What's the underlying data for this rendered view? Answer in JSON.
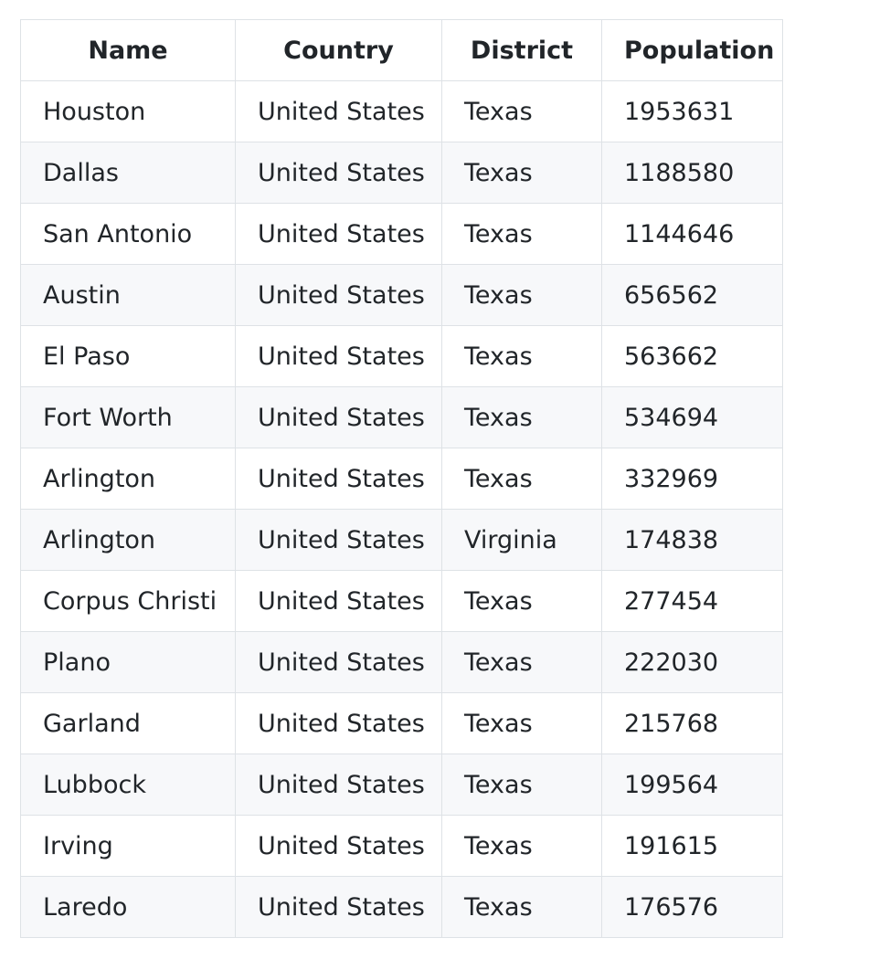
{
  "table": {
    "headers": {
      "name": "Name",
      "country": "Country",
      "district": "District",
      "population": "Population"
    },
    "rows": [
      {
        "name": "Houston",
        "country": "United States",
        "district": "Texas",
        "population": "1953631"
      },
      {
        "name": "Dallas",
        "country": "United States",
        "district": "Texas",
        "population": "1188580"
      },
      {
        "name": "San Antonio",
        "country": "United States",
        "district": "Texas",
        "population": "1144646"
      },
      {
        "name": "Austin",
        "country": "United States",
        "district": "Texas",
        "population": "656562"
      },
      {
        "name": "El Paso",
        "country": "United States",
        "district": "Texas",
        "population": "563662"
      },
      {
        "name": "Fort Worth",
        "country": "United States",
        "district": "Texas",
        "population": "534694"
      },
      {
        "name": "Arlington",
        "country": "United States",
        "district": "Texas",
        "population": "332969"
      },
      {
        "name": "Arlington",
        "country": "United States",
        "district": "Virginia",
        "population": "174838"
      },
      {
        "name": "Corpus Christi",
        "country": "United States",
        "district": "Texas",
        "population": "277454"
      },
      {
        "name": "Plano",
        "country": "United States",
        "district": "Texas",
        "population": "222030"
      },
      {
        "name": "Garland",
        "country": "United States",
        "district": "Texas",
        "population": "215768"
      },
      {
        "name": "Lubbock",
        "country": "United States",
        "district": "Texas",
        "population": "199564"
      },
      {
        "name": "Irving",
        "country": "United States",
        "district": "Texas",
        "population": "191615"
      },
      {
        "name": "Laredo",
        "country": "United States",
        "district": "Texas",
        "population": "176576"
      }
    ]
  }
}
